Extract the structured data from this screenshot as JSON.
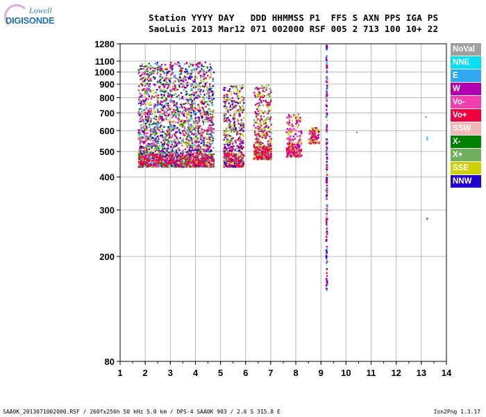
{
  "logo": {
    "line1": "Lowell",
    "line2": "DIGISONDE"
  },
  "header": {
    "line1": "Station YYYY DAY   DDD HHMMSS P1  FFS S AXN PPS IGA PS",
    "line2": "SaoLuis 2013 Mar12 071 002000 RSF 005 2 713 100 10+ 22"
  },
  "footer": {
    "left": "SAA0K_2013071002000.RSF / 260fx256h 50 kHz 5.0 km / DPS-4 SAA0K 903 / 2.6 S 315.8 E",
    "right": "Ion2Png 1.3.17"
  },
  "legend": [
    {
      "label": "NoVal",
      "color": "#a0a0a0"
    },
    {
      "label": "NNE",
      "color": "#00e0f0"
    },
    {
      "label": "E",
      "color": "#30a8f0"
    },
    {
      "label": "W",
      "color": "#b000b0"
    },
    {
      "label": "Vo-",
      "color": "#f040b0"
    },
    {
      "label": "Vo+",
      "color": "#f00040"
    },
    {
      "label": "SSW",
      "color": "#f0b8b8"
    },
    {
      "label": "X-",
      "color": "#008000"
    },
    {
      "label": "X+",
      "color": "#70b060"
    },
    {
      "label": "SSE",
      "color": "#d0d000"
    },
    {
      "label": "NNW",
      "color": "#2000d0"
    }
  ],
  "chart_data": {
    "type": "scatter",
    "xlim": [
      1,
      14
    ],
    "ylim": [
      80,
      1280
    ],
    "yscale": "log",
    "x_ticks": [
      1,
      2,
      3,
      4,
      5,
      6,
      7,
      8,
      9,
      10,
      11,
      12,
      13,
      14
    ],
    "y_ticks": [
      80,
      200,
      300,
      400,
      500,
      600,
      700,
      800,
      900,
      1000,
      1100,
      1280
    ],
    "grid": true,
    "regions": [
      {
        "x": [
          1.7,
          4.7
        ],
        "y": [
          440,
          1100
        ],
        "colors": [
          "Vo+",
          "W",
          "Vo-",
          "SSE",
          "X-",
          "X+",
          "NNW",
          "E"
        ]
      },
      {
        "x": [
          5.1,
          5.9
        ],
        "y": [
          440,
          900
        ],
        "colors": [
          "Vo+",
          "W",
          "SSE",
          "X+",
          "NNW"
        ]
      },
      {
        "x": [
          6.3,
          7.0
        ],
        "y": [
          470,
          900
        ],
        "colors": [
          "Vo+",
          "W",
          "SSE",
          "X+"
        ]
      },
      {
        "x": [
          7.6,
          8.2
        ],
        "y": [
          480,
          700
        ],
        "colors": [
          "W",
          "Vo-",
          "SSE"
        ]
      },
      {
        "x": [
          8.5,
          8.9
        ],
        "y": [
          540,
          620
        ],
        "colors": [
          "W",
          "SSE"
        ]
      }
    ],
    "vertical_trace": {
      "x": 9.2,
      "y": [
        150,
        1280
      ],
      "colors": [
        "SSW",
        "Vo+",
        "NNW",
        "E",
        "W"
      ]
    },
    "sparse_points": [
      {
        "x": 10.4,
        "y": 595,
        "color": "X+"
      },
      {
        "x": 13.2,
        "y": 560,
        "color": "E"
      },
      {
        "x": 13.2,
        "y": 570,
        "color": "NNE"
      },
      {
        "x": 13.2,
        "y": 280,
        "color": "X-"
      },
      {
        "x": 13.15,
        "y": 680,
        "color": "X+"
      }
    ]
  }
}
